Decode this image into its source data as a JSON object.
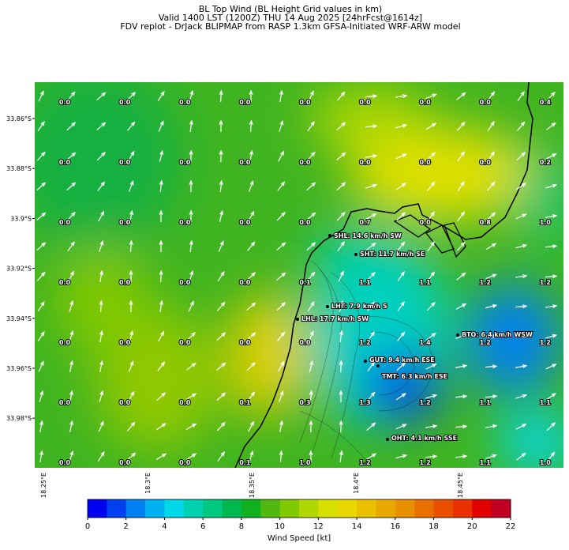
{
  "header": {
    "lines": [
      "BL Top Wind (BL Height Grid values in km)",
      "Valid 1400 LST (1200Z) THU 14 Aug 2025 [24hrFcst@1614z]",
      "FDV replot - DrJack BLIPMAP from RASP 1.3km GFSA-Initiated WRF-ARW model"
    ]
  },
  "grid_values": [
    [
      "0.0",
      "0.0",
      "0.0",
      "0.0",
      "0.0",
      "0.0",
      "0.0",
      "0.0",
      "0.4"
    ],
    [
      "0.0",
      "0.0",
      "0.0",
      "0.0",
      "0.0",
      "0.0",
      "0.0",
      "0.0",
      "0.2"
    ],
    [
      "0.0",
      "0.0",
      "0.0",
      "0.0",
      "0.0",
      "0.7",
      "0.0",
      "0.8",
      "1.0"
    ],
    [
      "0.0",
      "0.0",
      "0.0",
      "0.0",
      "0.1",
      "1.1",
      "1.1",
      "1.2",
      "1.2"
    ],
    [
      "0.0",
      "0.0",
      "0.0",
      "0.0",
      "0.0",
      "1.2",
      "1.4",
      "1.2",
      "1.2"
    ],
    [
      "0.0",
      "0.0",
      "0.0",
      "0.1",
      "0.3",
      "1.3",
      "1.2",
      "1.1",
      "1.1"
    ],
    [
      "0.0",
      "0.0",
      "0.0",
      "0.1",
      "1.0",
      "1.2",
      "1.2",
      "1.1",
      "1.0"
    ]
  ],
  "stations": [
    {
      "label": "SHL: 14.6 km/h SW"
    },
    {
      "label": "SHT: 11.7 km/h SE"
    },
    {
      "label": "LHT: 7.9 km/h S"
    },
    {
      "label": "LHL: 17.7 km/h SW"
    },
    {
      "label": "BTO: 6.4 km/h WSW"
    },
    {
      "label": "GUT: 9.4 km/h ESE"
    },
    {
      "label": "TMT: 6.3 km/h ESE"
    },
    {
      "label": "OHT: 4.1 km/h SSE"
    }
  ],
  "lat_labels": [
    "33.86°S",
    "33.88°S",
    "33.9°S",
    "33.92°S",
    "33.94°S",
    "33.96°S",
    "33.98°S"
  ],
  "lon_labels": [
    "18.25°E",
    "18.3°E",
    "18.35°E",
    "18.4°E",
    "18.45°E"
  ],
  "colorbar": {
    "label": "Wind Speed [kt]",
    "lim": [
      0,
      22
    ],
    "ticks": [
      0,
      2,
      4,
      6,
      8,
      10,
      12,
      14,
      16,
      18,
      20,
      22
    ],
    "colors": [
      "#0000f0",
      "#0040f0",
      "#0080f0",
      "#00b0f0",
      "#00d8e8",
      "#00d0b0",
      "#00c880",
      "#00b850",
      "#10b020",
      "#50b810",
      "#80c800",
      "#b0d800",
      "#d8e000",
      "#e8d800",
      "#e8c000",
      "#e8a800",
      "#e89000",
      "#e87000",
      "#e85000",
      "#e83000",
      "#e00000",
      "#c00020"
    ]
  }
}
